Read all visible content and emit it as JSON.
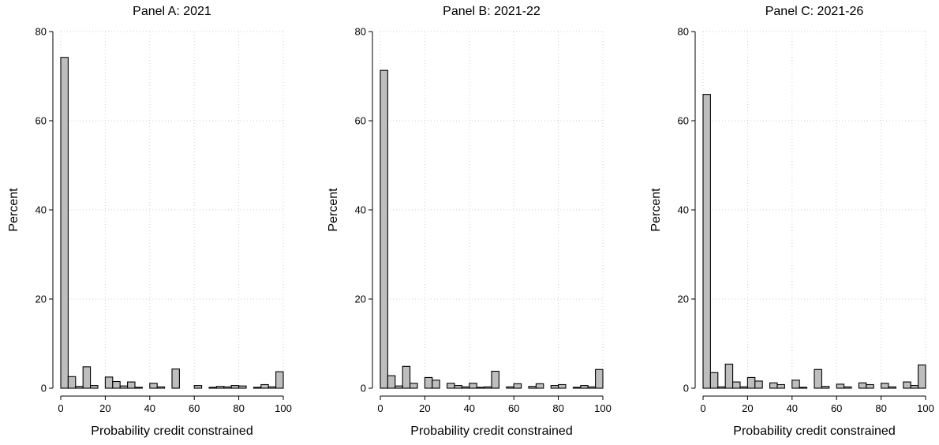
{
  "chart_data": [
    {
      "type": "bar",
      "title": "Panel A: 2021",
      "xlabel": "Probability credit constrained",
      "ylabel": "Percent",
      "xlim": [
        0,
        100
      ],
      "ylim": [
        0,
        80
      ],
      "xticks": [
        0,
        20,
        40,
        60,
        80,
        100
      ],
      "yticks": [
        0,
        20,
        40,
        60,
        80
      ],
      "grid": true,
      "bin_width": 3.33,
      "bins": [
        {
          "x": 0,
          "value": 74.2
        },
        {
          "x": 3.33,
          "value": 2.6
        },
        {
          "x": 6.67,
          "value": 0.4
        },
        {
          "x": 10,
          "value": 4.8
        },
        {
          "x": 13.33,
          "value": 0.6
        },
        {
          "x": 20,
          "value": 2.5
        },
        {
          "x": 23.33,
          "value": 1.5
        },
        {
          "x": 26.67,
          "value": 0.5
        },
        {
          "x": 30,
          "value": 1.4
        },
        {
          "x": 33.33,
          "value": 0.2
        },
        {
          "x": 40,
          "value": 1.1
        },
        {
          "x": 43.33,
          "value": 0.3
        },
        {
          "x": 50,
          "value": 4.3
        },
        {
          "x": 60,
          "value": 0.6
        },
        {
          "x": 66.67,
          "value": 0.2
        },
        {
          "x": 70,
          "value": 0.4
        },
        {
          "x": 73.33,
          "value": 0.3
        },
        {
          "x": 76.67,
          "value": 0.6
        },
        {
          "x": 80,
          "value": 0.5
        },
        {
          "x": 86.67,
          "value": 0.2
        },
        {
          "x": 90,
          "value": 0.8
        },
        {
          "x": 93.33,
          "value": 0.3
        },
        {
          "x": 96.67,
          "value": 3.7
        }
      ]
    },
    {
      "type": "bar",
      "title": "Panel B: 2021-22",
      "xlabel": "Probability credit constrained",
      "ylabel": "Percent",
      "xlim": [
        0,
        100
      ],
      "ylim": [
        0,
        80
      ],
      "xticks": [
        0,
        20,
        40,
        60,
        80,
        100
      ],
      "yticks": [
        0,
        20,
        40,
        60,
        80
      ],
      "grid": true,
      "bin_width": 3.33,
      "bins": [
        {
          "x": 0,
          "value": 71.3
        },
        {
          "x": 3.33,
          "value": 2.8
        },
        {
          "x": 6.67,
          "value": 0.5
        },
        {
          "x": 10,
          "value": 4.9
        },
        {
          "x": 13.33,
          "value": 1.1
        },
        {
          "x": 20,
          "value": 2.4
        },
        {
          "x": 23.33,
          "value": 1.8
        },
        {
          "x": 30,
          "value": 1.1
        },
        {
          "x": 33.33,
          "value": 0.6
        },
        {
          "x": 36.67,
          "value": 0.3
        },
        {
          "x": 40,
          "value": 1.1
        },
        {
          "x": 43.33,
          "value": 0.2
        },
        {
          "x": 46.67,
          "value": 0.3
        },
        {
          "x": 50,
          "value": 3.8
        },
        {
          "x": 56.67,
          "value": 0.3
        },
        {
          "x": 60,
          "value": 1.0
        },
        {
          "x": 66.67,
          "value": 0.4
        },
        {
          "x": 70,
          "value": 1.0
        },
        {
          "x": 76.67,
          "value": 0.6
        },
        {
          "x": 80,
          "value": 0.8
        },
        {
          "x": 86.67,
          "value": 0.2
        },
        {
          "x": 90,
          "value": 0.6
        },
        {
          "x": 93.33,
          "value": 0.3
        },
        {
          "x": 96.67,
          "value": 4.2
        }
      ]
    },
    {
      "type": "bar",
      "title": "Panel C: 2021-26",
      "xlabel": "Probability credit constrained",
      "ylabel": "Percent",
      "xlim": [
        0,
        100
      ],
      "ylim": [
        0,
        80
      ],
      "xticks": [
        0,
        20,
        40,
        60,
        80,
        100
      ],
      "yticks": [
        0,
        20,
        40,
        60,
        80
      ],
      "grid": true,
      "bin_width": 3.33,
      "bins": [
        {
          "x": 0,
          "value": 65.9
        },
        {
          "x": 3.33,
          "value": 3.5
        },
        {
          "x": 6.67,
          "value": 0.3
        },
        {
          "x": 10,
          "value": 5.4
        },
        {
          "x": 13.33,
          "value": 1.4
        },
        {
          "x": 16.67,
          "value": 0.3
        },
        {
          "x": 20,
          "value": 2.4
        },
        {
          "x": 23.33,
          "value": 1.6
        },
        {
          "x": 30,
          "value": 1.2
        },
        {
          "x": 33.33,
          "value": 0.8
        },
        {
          "x": 40,
          "value": 1.8
        },
        {
          "x": 43.33,
          "value": 0.2
        },
        {
          "x": 50,
          "value": 4.2
        },
        {
          "x": 53.33,
          "value": 0.4
        },
        {
          "x": 60,
          "value": 0.9
        },
        {
          "x": 63.33,
          "value": 0.3
        },
        {
          "x": 70,
          "value": 1.2
        },
        {
          "x": 73.33,
          "value": 0.8
        },
        {
          "x": 80,
          "value": 1.1
        },
        {
          "x": 83.33,
          "value": 0.3
        },
        {
          "x": 90,
          "value": 1.4
        },
        {
          "x": 93.33,
          "value": 0.6
        },
        {
          "x": 96.67,
          "value": 5.2
        }
      ]
    }
  ]
}
